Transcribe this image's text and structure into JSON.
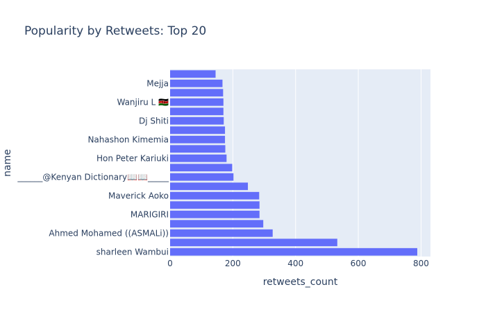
{
  "chart_data": {
    "type": "bar",
    "orientation": "horizontal",
    "title": "Popularity by Retweets: Top 20",
    "xlabel": "retweets_count",
    "ylabel": "name",
    "xlim": [
      0,
      830
    ],
    "x_ticks": [
      0,
      200,
      400,
      600,
      800
    ],
    "grid": true,
    "bar_color": "#636efa",
    "plot_bg": "#e5ecf6",
    "categories": [
      "sharleen Wambui",
      "",
      "Ahmed Mohamed ((ASMALi))",
      "",
      "MARIGIRI",
      "",
      "Maverick Aoko",
      "",
      "______@Kenyan Dictionary📖📖_____",
      "",
      "Hon Peter Kariuki",
      "",
      "Nahashon Kimemia",
      "",
      "Dj Shiti",
      "",
      "Wanjiru L 🇰🇪",
      "",
      "Mejja",
      ""
    ],
    "values": [
      788,
      533,
      327,
      297,
      285,
      285,
      284,
      248,
      202,
      198,
      180,
      176,
      175,
      175,
      171,
      170,
      170,
      169,
      167,
      145
    ]
  }
}
